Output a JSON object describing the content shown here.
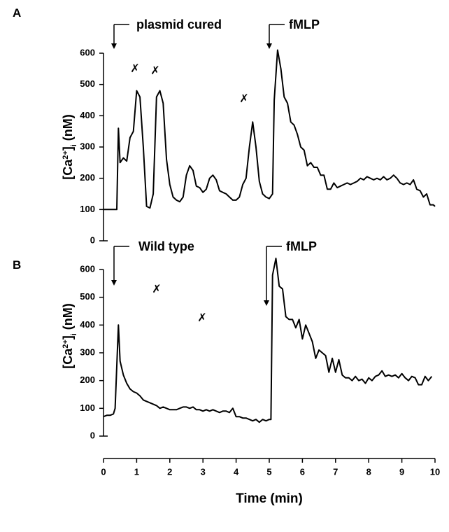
{
  "chart_data": [
    {
      "type": "line",
      "panel": "A",
      "ylabel": {
        "base": "[Ca",
        "sup": "2+",
        "close": "]",
        "sub": "i",
        "unit": "(nM)"
      },
      "annotations": [
        "plasmid cured",
        "fMLP"
      ],
      "marks": [
        "✗",
        "✗",
        "✗"
      ],
      "color": "#000000",
      "xlim": [
        0,
        10
      ],
      "ylim": [
        0,
        600
      ],
      "yticks": [
        0,
        100,
        200,
        300,
        400,
        500,
        600
      ],
      "x": [
        0,
        0.1,
        0.2,
        0.3,
        0.4,
        0.45,
        0.5,
        0.6,
        0.7,
        0.8,
        0.9,
        1.0,
        1.1,
        1.2,
        1.3,
        1.4,
        1.5,
        1.6,
        1.7,
        1.8,
        1.9,
        2.0,
        2.1,
        2.2,
        2.3,
        2.4,
        2.5,
        2.6,
        2.7,
        2.8,
        2.9,
        3.0,
        3.1,
        3.2,
        3.3,
        3.4,
        3.5,
        3.6,
        3.7,
        3.8,
        3.9,
        4.0,
        4.1,
        4.2,
        4.3,
        4.4,
        4.5,
        4.6,
        4.7,
        4.8,
        4.9,
        5.0,
        5.1,
        5.15,
        5.25,
        5.35,
        5.45,
        5.55,
        5.65,
        5.75,
        5.85,
        5.95,
        6.05,
        6.15,
        6.25,
        6.35,
        6.45,
        6.55,
        6.65,
        6.75,
        6.85,
        6.95,
        7.05,
        7.15,
        7.25,
        7.35,
        7.45,
        7.55,
        7.65,
        7.75,
        7.85,
        7.95,
        8.05,
        8.15,
        8.25,
        8.35,
        8.45,
        8.55,
        8.65,
        8.75,
        8.85,
        8.95,
        9.05,
        9.15,
        9.25,
        9.35,
        9.45,
        9.55,
        9.65,
        9.75,
        9.85,
        9.95,
        10
      ],
      "values": [
        100,
        100,
        100,
        100,
        100,
        360,
        250,
        265,
        255,
        330,
        350,
        480,
        460,
        300,
        110,
        105,
        150,
        460,
        480,
        440,
        260,
        180,
        140,
        130,
        125,
        140,
        210,
        240,
        225,
        175,
        170,
        155,
        165,
        200,
        210,
        195,
        160,
        155,
        150,
        140,
        130,
        130,
        140,
        180,
        200,
        300,
        380,
        300,
        190,
        150,
        140,
        135,
        150,
        450,
        610,
        550,
        460,
        440,
        380,
        370,
        340,
        300,
        290,
        240,
        250,
        235,
        235,
        210,
        210,
        165,
        165,
        185,
        170,
        175,
        180,
        185,
        180,
        185,
        190,
        200,
        195,
        205,
        200,
        195,
        200,
        195,
        205,
        195,
        200,
        210,
        200,
        185,
        180,
        185,
        180,
        195,
        165,
        160,
        140,
        150,
        115,
        115,
        110
      ]
    },
    {
      "type": "line",
      "panel": "B",
      "ylabel": {
        "base": "[Ca",
        "sup": "2+",
        "close": "]",
        "sub": "i",
        "unit": "(nM)"
      },
      "annotations": [
        "Wild type",
        "fMLP"
      ],
      "marks": [
        "✗",
        "✗"
      ],
      "xlabel": "Time (min)",
      "color": "#000000",
      "xlim": [
        0,
        10
      ],
      "xticks": [
        0,
        1,
        2,
        3,
        4,
        5,
        6,
        7,
        8,
        9,
        10
      ],
      "ylim": [
        0,
        600
      ],
      "yticks": [
        0,
        100,
        200,
        300,
        400,
        500,
        600
      ],
      "x": [
        0,
        0.1,
        0.2,
        0.3,
        0.35,
        0.45,
        0.5,
        0.6,
        0.7,
        0.8,
        0.9,
        1.0,
        1.1,
        1.2,
        1.3,
        1.4,
        1.5,
        1.6,
        1.7,
        1.8,
        1.9,
        2.0,
        2.1,
        2.2,
        2.3,
        2.4,
        2.5,
        2.6,
        2.7,
        2.8,
        2.9,
        3.0,
        3.1,
        3.2,
        3.3,
        3.4,
        3.5,
        3.6,
        3.7,
        3.8,
        3.9,
        4.0,
        4.1,
        4.2,
        4.3,
        4.4,
        4.5,
        4.6,
        4.7,
        4.8,
        4.9,
        5.0,
        5.05,
        5.1,
        5.2,
        5.3,
        5.4,
        5.5,
        5.6,
        5.7,
        5.8,
        5.9,
        6.0,
        6.1,
        6.2,
        6.3,
        6.4,
        6.5,
        6.6,
        6.7,
        6.8,
        6.9,
        7.0,
        7.1,
        7.2,
        7.3,
        7.4,
        7.5,
        7.6,
        7.7,
        7.8,
        7.9,
        8.0,
        8.1,
        8.2,
        8.3,
        8.4,
        8.5,
        8.6,
        8.7,
        8.8,
        8.9,
        9.0,
        9.1,
        9.2,
        9.3,
        9.4,
        9.5,
        9.6,
        9.7,
        9.8,
        9.9
      ],
      "values": [
        70,
        75,
        75,
        80,
        100,
        400,
        270,
        220,
        190,
        170,
        160,
        155,
        145,
        130,
        125,
        120,
        115,
        110,
        100,
        105,
        100,
        95,
        95,
        95,
        100,
        105,
        105,
        100,
        105,
        95,
        95,
        90,
        95,
        90,
        95,
        90,
        85,
        90,
        90,
        85,
        100,
        70,
        70,
        65,
        65,
        60,
        55,
        60,
        50,
        60,
        55,
        60,
        60,
        580,
        640,
        540,
        530,
        430,
        420,
        420,
        390,
        420,
        350,
        400,
        370,
        340,
        280,
        310,
        300,
        290,
        230,
        280,
        230,
        275,
        220,
        210,
        210,
        200,
        215,
        200,
        205,
        190,
        210,
        200,
        215,
        220,
        235,
        215,
        220,
        215,
        220,
        210,
        225,
        210,
        200,
        215,
        210,
        185,
        185,
        215,
        200,
        215
      ]
    }
  ]
}
